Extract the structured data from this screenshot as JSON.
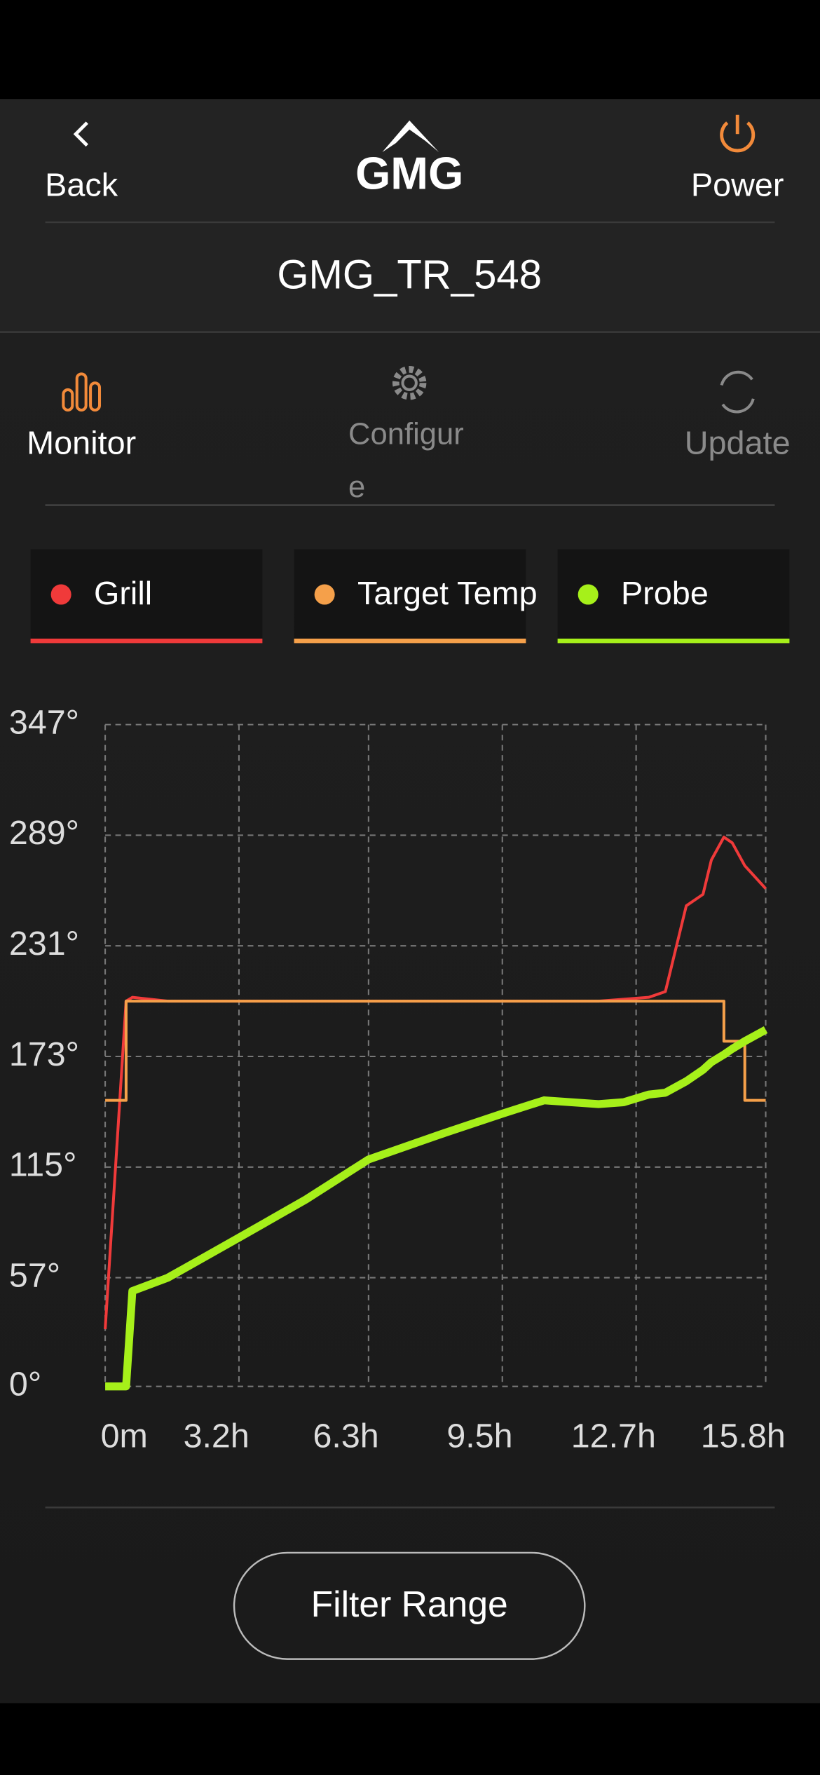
{
  "header": {
    "back": "Back",
    "logo": "GMG",
    "power": "Power",
    "device": "GMG_TR_548"
  },
  "tabs": [
    "Monitor",
    "Configure",
    "Update"
  ],
  "chart_data": {
    "type": "line",
    "x": [
      0,
      0.3,
      0.5,
      0.65,
      1.5,
      3.2,
      4.8,
      6.3,
      8,
      9.5,
      10.5,
      11.8,
      12.4,
      13,
      13.4,
      13.9,
      14.3,
      14.5,
      14.8,
      15,
      15.3,
      15.8
    ],
    "series": [
      {
        "name": "Grill",
        "color": "#f03a3a",
        "values": [
          30,
          133,
          202,
          204,
          202,
          202,
          202,
          202,
          202,
          202,
          202,
          202,
          203,
          204,
          207,
          252,
          258,
          276,
          288,
          285,
          273,
          261
        ]
      },
      {
        "name": "Target Temp",
        "color": "#f5a04a",
        "step": true,
        "values": [
          150,
          150,
          202,
          202,
          202,
          202,
          202,
          202,
          202,
          202,
          202,
          202,
          202,
          202,
          202,
          202,
          202,
          202,
          181,
          181,
          150,
          150
        ]
      },
      {
        "name": "Probe",
        "color": "#a6f01a",
        "values": [
          0,
          0,
          0,
          50,
          57,
          78,
          98,
          119,
          132,
          143,
          150,
          148,
          149,
          153,
          154,
          160,
          166,
          170,
          174,
          177,
          181,
          187
        ]
      }
    ],
    "xlim": [
      0,
      15.8
    ],
    "xticks": [
      {
        "value": 0,
        "label": "0m"
      },
      {
        "value": 3.2,
        "label": "3.2h"
      },
      {
        "value": 6.3,
        "label": "6.3h"
      },
      {
        "value": 9.5,
        "label": "9.5h"
      },
      {
        "value": 12.7,
        "label": "12.7h"
      },
      {
        "value": 15.8,
        "label": "15.8h"
      }
    ],
    "ylim": [
      0,
      347
    ],
    "yticks": [
      {
        "value": 0,
        "label": "0°"
      },
      {
        "value": 57,
        "label": "57°"
      },
      {
        "value": 115,
        "label": "115°"
      },
      {
        "value": 173,
        "label": "173°"
      },
      {
        "value": 231,
        "label": "231°"
      },
      {
        "value": 289,
        "label": "289°"
      },
      {
        "value": 347,
        "label": "347°"
      }
    ],
    "grid": true
  },
  "button": "Filter Range"
}
